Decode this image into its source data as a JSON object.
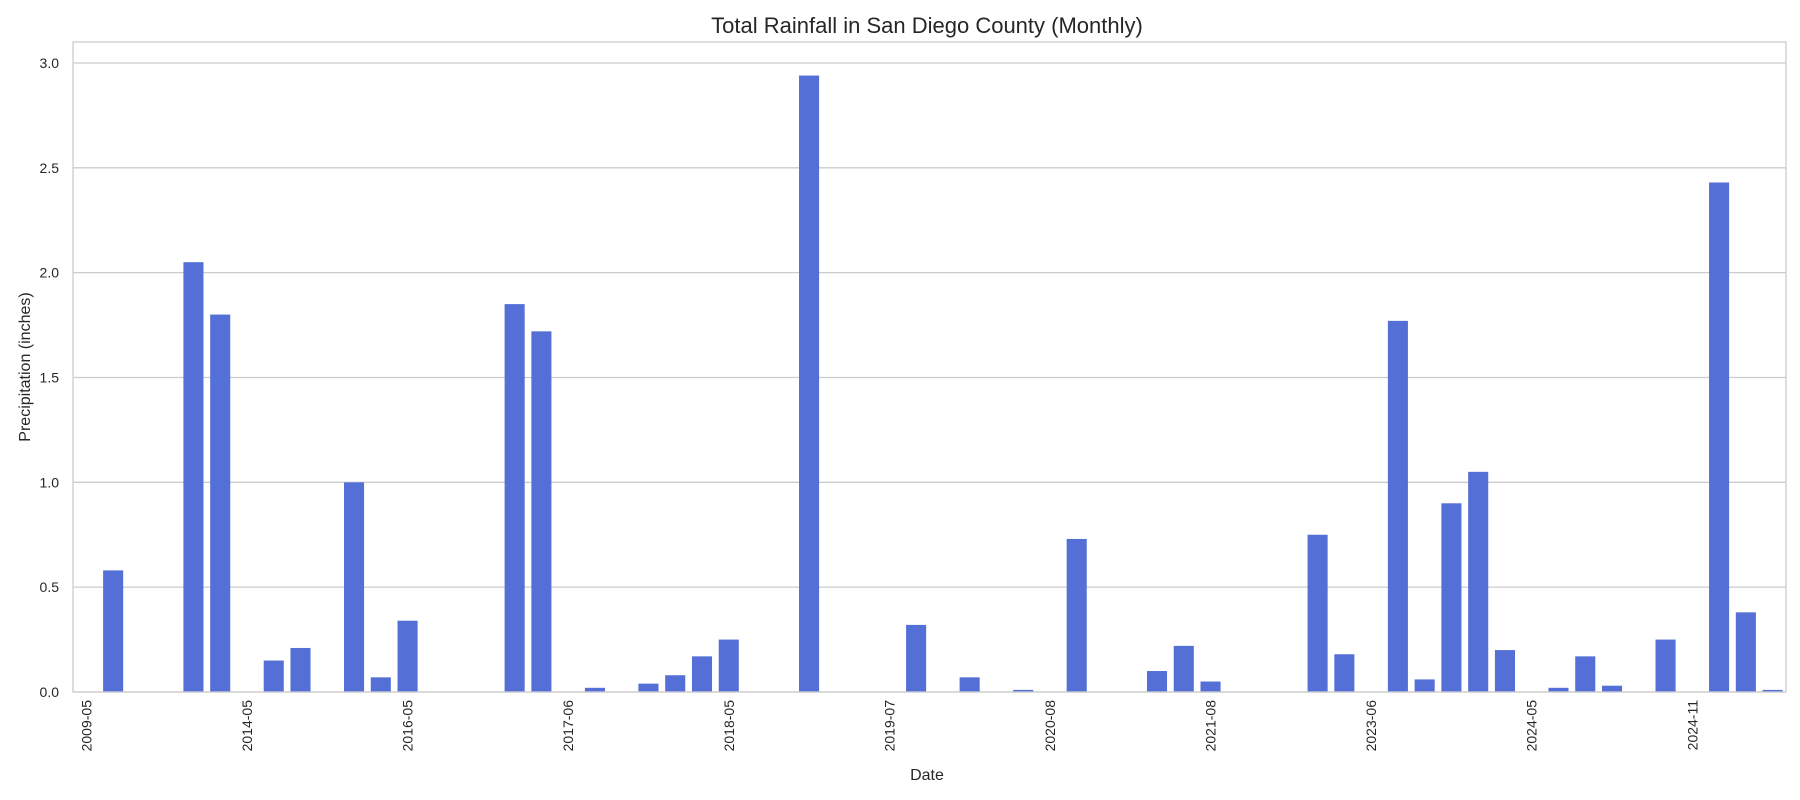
{
  "chart_data": {
    "type": "bar",
    "title": "Total Rainfall in San Diego County (Monthly)",
    "xlabel": "Date",
    "ylabel": "Precipitation (inches)",
    "ylim": [
      0,
      3.1
    ],
    "yticks": [
      "0.0",
      "0.5",
      "1.0",
      "1.5",
      "2.0",
      "2.5",
      "3.0"
    ],
    "grid": "horizontal",
    "legend": "none",
    "bar_color": "#5470d6",
    "xtick_labels": [
      {
        "label": "2009-05",
        "index": 0
      },
      {
        "label": "2014-05",
        "index": 6
      },
      {
        "label": "2016-05",
        "index": 12
      },
      {
        "label": "2017-06",
        "index": 18
      },
      {
        "label": "2018-05",
        "index": 24
      },
      {
        "label": "2019-07",
        "index": 30
      },
      {
        "label": "2020-08",
        "index": 36
      },
      {
        "label": "2021-08",
        "index": 42
      },
      {
        "label": "2023-06",
        "index": 48
      },
      {
        "label": "2024-05",
        "index": 54
      },
      {
        "label": "2024-11",
        "index": 60
      }
    ],
    "values": [
      0,
      0.58,
      0,
      0,
      2.05,
      1.8,
      0,
      0.15,
      0.21,
      0,
      1.0,
      0.07,
      0.34,
      0,
      0,
      0,
      1.85,
      1.72,
      0,
      0.02,
      0,
      0.04,
      0.08,
      0.17,
      0.25,
      0,
      0,
      2.94,
      0,
      0,
      0,
      0.32,
      0,
      0.07,
      0,
      0.01,
      0,
      0.73,
      0,
      0,
      0.1,
      0.22,
      0.05,
      0,
      0,
      0,
      0.75,
      0.18,
      0,
      1.77,
      0.06,
      0.9,
      1.05,
      0.2,
      0,
      0.02,
      0.17,
      0.03,
      0,
      0.25,
      0,
      2.43,
      0.38,
      0.01
    ]
  }
}
